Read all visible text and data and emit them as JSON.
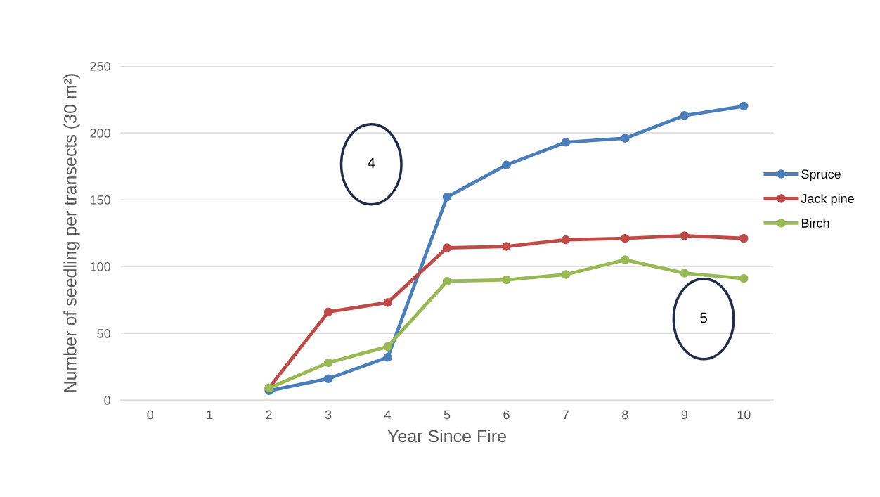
{
  "chart_data": {
    "type": "line",
    "xlabel": "Year Since Fire",
    "ylabel": "Number of seedling per transects (30 m²)",
    "categories": [
      "0",
      "1",
      "2",
      "3",
      "4",
      "5",
      "6",
      "7",
      "8",
      "9",
      "10"
    ],
    "series": [
      {
        "name": "Spruce",
        "color": "#4a7ebb",
        "values": [
          null,
          null,
          7,
          16,
          32,
          152,
          176,
          193,
          196,
          213,
          220
        ]
      },
      {
        "name": "Jack pine",
        "color": "#be4b48",
        "values": [
          null,
          null,
          9,
          66,
          73,
          114,
          115,
          120,
          121,
          123,
          121
        ]
      },
      {
        "name": "Birch",
        "color": "#98b954",
        "values": [
          null,
          null,
          9,
          28,
          40,
          89,
          90,
          94,
          105,
          95,
          91
        ]
      }
    ],
    "ylim": [
      0,
      250
    ],
    "yticks": [
      0,
      50,
      100,
      150,
      200,
      250
    ],
    "annotations": [
      "4",
      "5"
    ],
    "grid": "y",
    "legend": "right",
    "marker": "circle",
    "line_style": "solid"
  }
}
